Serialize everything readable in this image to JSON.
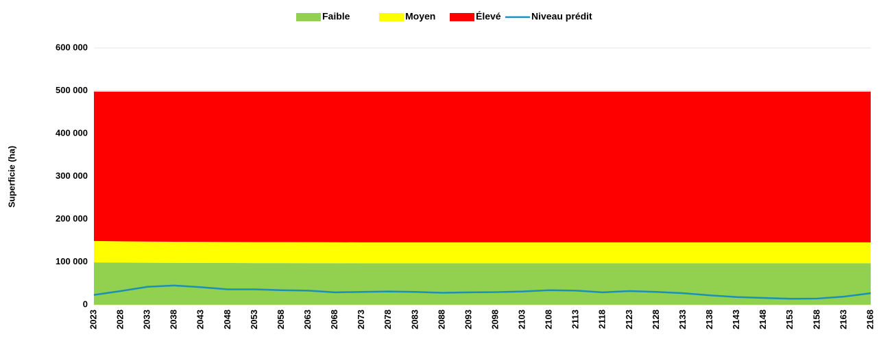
{
  "chart_data": {
    "type": "area",
    "stacked": true,
    "ylabel": "Superficie (ha)",
    "categories": [
      "2023",
      "2028",
      "2033",
      "2038",
      "2043",
      "2048",
      "2053",
      "2058",
      "2063",
      "2068",
      "2073",
      "2078",
      "2083",
      "2088",
      "2093",
      "2098",
      "2103",
      "2108",
      "2113",
      "2118",
      "2123",
      "2128",
      "2133",
      "2138",
      "2143",
      "2148",
      "2153",
      "2158",
      "2163",
      "2168"
    ],
    "ylim": [
      0,
      600000
    ],
    "yticks": [
      {
        "value": 0,
        "label": "0"
      },
      {
        "value": 100000,
        "label": "100 000"
      },
      {
        "value": 200000,
        "label": "200 000"
      },
      {
        "value": 300000,
        "label": "300 000"
      },
      {
        "value": 400000,
        "label": "400 000"
      },
      {
        "value": 500000,
        "label": "500 000"
      },
      {
        "value": 600000,
        "label": "600 000"
      }
    ],
    "grid": true,
    "legend": "top",
    "series": [
      {
        "name": "Faible",
        "type": "area",
        "color": "#92d050",
        "values": [
          99000,
          98500,
          98200,
          98000,
          97800,
          97600,
          97500,
          97400,
          97300,
          97200,
          97000,
          97000,
          97000,
          97000,
          97000,
          97000,
          97000,
          97000,
          97000,
          97000,
          97000,
          97000,
          97000,
          97000,
          97000,
          97000,
          97000,
          97000,
          97000,
          97000
        ]
      },
      {
        "name": "Moyen",
        "type": "area",
        "color": "#ffff00",
        "values": [
          50000,
          49800,
          49500,
          49300,
          49200,
          49100,
          49000,
          49000,
          48900,
          48800,
          48800,
          48800,
          48800,
          48800,
          48800,
          48800,
          48800,
          48800,
          48800,
          48800,
          48800,
          48800,
          48800,
          48800,
          48800,
          48800,
          48800,
          48800,
          48800,
          48800
        ]
      },
      {
        "name": "Élevé",
        "type": "area",
        "color": "#ff0000",
        "values": [
          349000,
          349700,
          350300,
          350700,
          351000,
          351300,
          351500,
          351600,
          351800,
          352000,
          352200,
          352200,
          352200,
          352200,
          352200,
          352200,
          352200,
          352200,
          352200,
          352200,
          352200,
          352200,
          352200,
          352200,
          352200,
          352200,
          352200,
          352200,
          352200,
          352200
        ]
      },
      {
        "name": "Niveau prédit",
        "type": "line",
        "color": "#1a8fb8",
        "values": [
          23000,
          32000,
          42000,
          45000,
          41000,
          36000,
          36000,
          34000,
          33000,
          29000,
          30000,
          31000,
          30000,
          28000,
          29000,
          29500,
          31000,
          34000,
          33000,
          29000,
          32000,
          30000,
          27000,
          22000,
          18000,
          16000,
          14000,
          14500,
          19000,
          27000
        ]
      }
    ]
  }
}
